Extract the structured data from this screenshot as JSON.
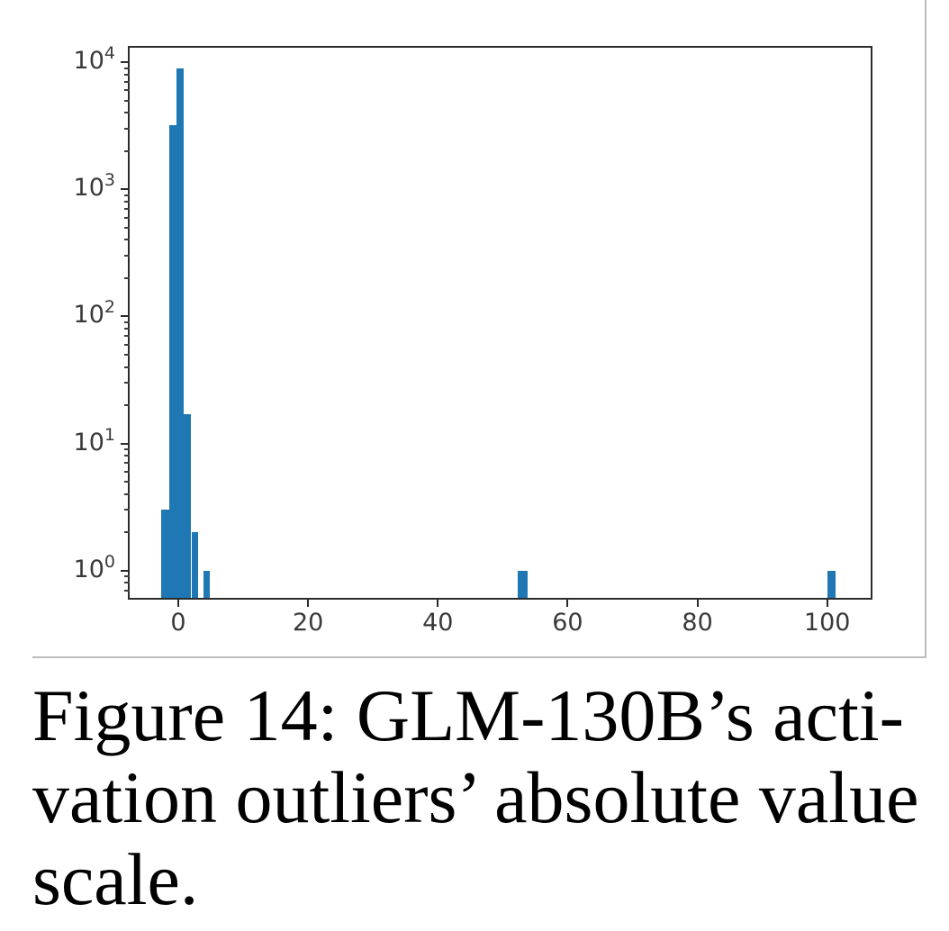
{
  "figure": {
    "caption_lines": [
      "Figure 14: GLM-130B’s acti-",
      "vation outliers’ absolute value",
      "scale."
    ]
  },
  "chart_data": {
    "type": "bar",
    "subtype": "histogram",
    "title": "",
    "xlabel": "",
    "ylabel": "",
    "y_scale": "log",
    "grid": false,
    "legend_position": "none",
    "bar_color": "#1f77b4",
    "spine_color": "#2b2b2b",
    "tick_label_color": "#3a3a3a",
    "figure_border_color": "#bcbcbc",
    "x_ticks": [
      0,
      20,
      40,
      60,
      80,
      100
    ],
    "y_tick_exponents": [
      0,
      1,
      2,
      3,
      4
    ],
    "xlim": [
      -7.5,
      106.7
    ],
    "ylim": [
      0.61,
      13000
    ],
    "bars": [
      {
        "x0": -2.6,
        "x1": -1.4,
        "count": 3
      },
      {
        "x0": -1.4,
        "x1": -0.3,
        "count": 3200
      },
      {
        "x0": -0.3,
        "x1": 0.8,
        "count": 9000
      },
      {
        "x0": 0.8,
        "x1": 2.0,
        "count": 17
      },
      {
        "x0": 2.0,
        "x1": 3.1,
        "count": 2
      },
      {
        "x0": 3.9,
        "x1": 4.9,
        "count": 1
      },
      {
        "x0": 52.3,
        "x1": 53.8,
        "count": 1
      },
      {
        "x0": 100.1,
        "x1": 101.3,
        "count": 1
      }
    ]
  }
}
